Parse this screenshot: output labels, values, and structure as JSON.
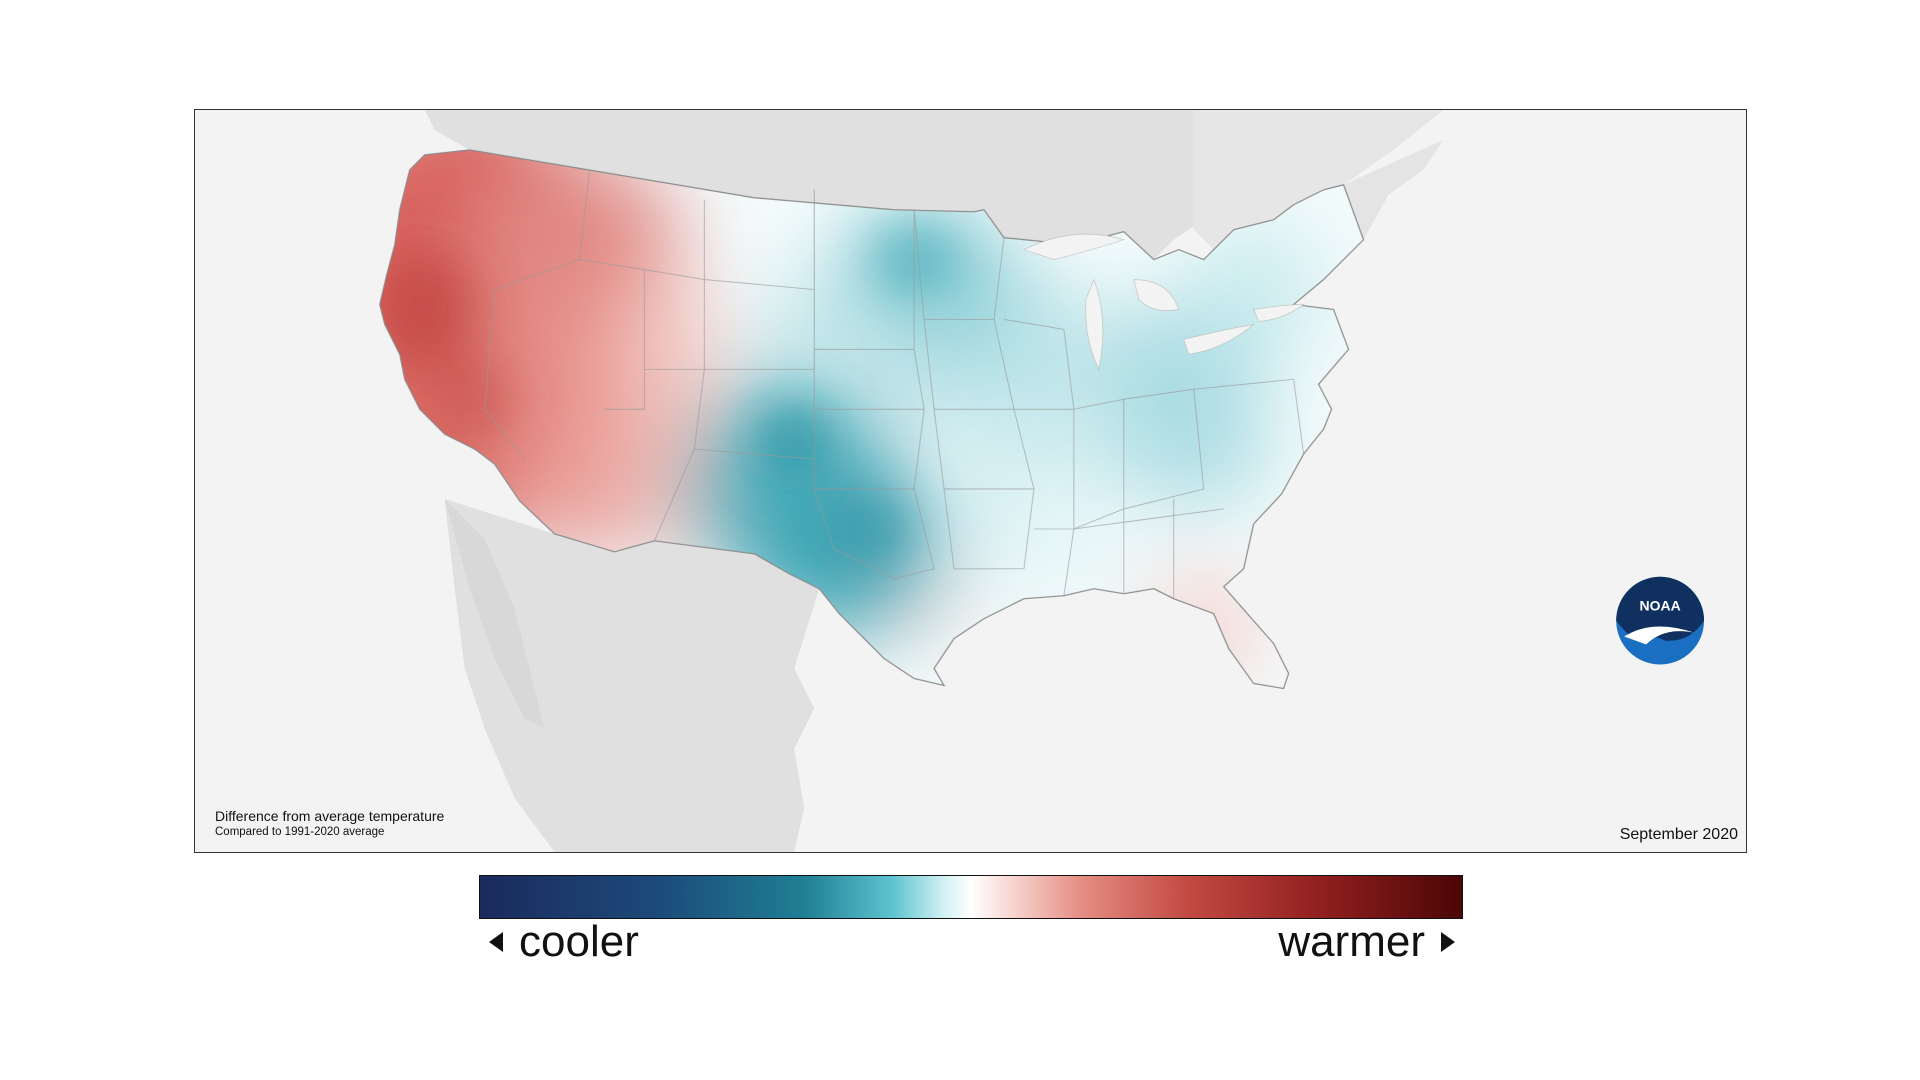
{
  "map": {
    "caption_title": "Difference from average temperature",
    "caption_subtitle": "Compared to 1991-2020 average",
    "period": "September 2020",
    "logo_text": "NOAA",
    "anomaly_pattern": "warmer than average across the West; cooler than average across the central Plains, Midwest and much of the East; slightly warmer in Florida and parts of the Gulf Coast"
  },
  "legend": {
    "cooler_label": "cooler",
    "warmer_label": "warmer",
    "colors": [
      "#1b2a5c",
      "#1f7f94",
      "#cdeff2",
      "#ffffff",
      "#f7d6d2",
      "#c34a43",
      "#4a0606"
    ]
  }
}
